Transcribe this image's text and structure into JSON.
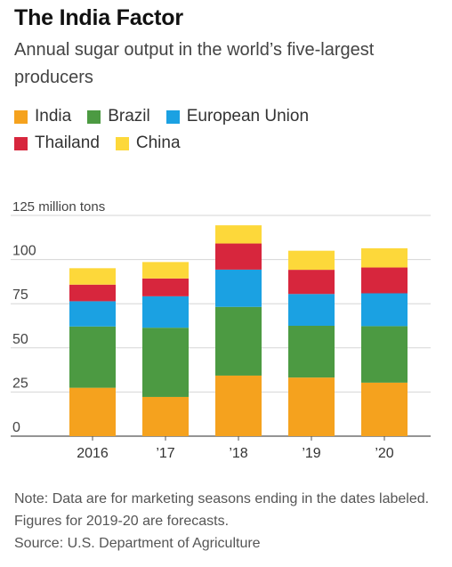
{
  "title": "The India Factor",
  "subtitle": "Annual sugar output in the world’s five-largest producers",
  "legend": [
    {
      "name": "India",
      "color": "#f5a21e"
    },
    {
      "name": "Brazil",
      "color": "#4c9a42"
    },
    {
      "name": "European Union",
      "color": "#1ba1e2"
    },
    {
      "name": "Thailand",
      "color": "#d7263d"
    },
    {
      "name": "China",
      "color": "#fdd83a"
    }
  ],
  "note": {
    "text": "Note: Data are for marketing seasons ending in the dates labeled. Figures for 2019-20 are forecasts.",
    "source": "Source: U.S. Department of Agriculture"
  },
  "chart_data": {
    "type": "bar",
    "stacked": true,
    "categories": [
      "2016",
      "’17",
      "’18",
      "’19",
      "’20"
    ],
    "series": [
      {
        "name": "India",
        "color": "#f5a21e",
        "values": [
          27.4,
          22.2,
          34.3,
          33.2,
          30.3
        ]
      },
      {
        "name": "Brazil",
        "color": "#4c9a42",
        "values": [
          34.7,
          39.2,
          38.9,
          29.3,
          32.0
        ]
      },
      {
        "name": "European Union",
        "color": "#1ba1e2",
        "values": [
          14.3,
          17.8,
          21.1,
          18.0,
          18.6
        ]
      },
      {
        "name": "Thailand",
        "color": "#d7263d",
        "values": [
          9.4,
          10.1,
          14.8,
          13.7,
          14.6
        ]
      },
      {
        "name": "China",
        "color": "#fdd83a",
        "values": [
          9.3,
          9.3,
          10.3,
          10.8,
          10.9
        ]
      }
    ],
    "ylim": [
      0,
      125
    ],
    "yticks": [
      0,
      25,
      50,
      75,
      100,
      125
    ],
    "ytick_labels": [
      "0",
      "25",
      "50",
      "75",
      "100",
      "125 million tons"
    ],
    "grid": true
  }
}
